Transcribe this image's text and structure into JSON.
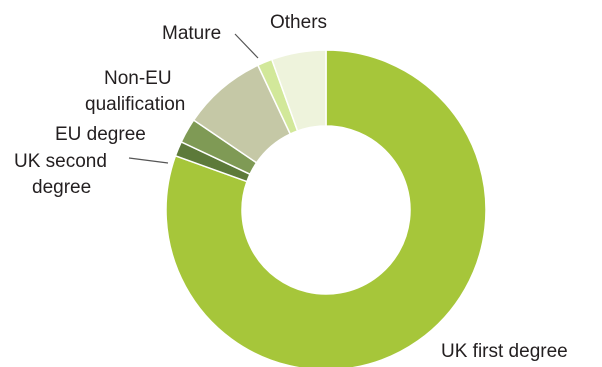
{
  "chart_data": {
    "type": "pie",
    "variant": "donut",
    "slices": [
      {
        "label": "UK first degree",
        "label_lines": [
          "UK first degree"
        ],
        "value": 80.5,
        "color": "#a6c63a"
      },
      {
        "label": "UK second degree",
        "label_lines": [
          "UK second",
          "degree"
        ],
        "value": 1.5,
        "color": "#5d7a3a"
      },
      {
        "label": "EU degree",
        "label_lines": [
          "EU degree"
        ],
        "value": 2.5,
        "color": "#7f9a55"
      },
      {
        "label": "Non-EU qualification",
        "label_lines": [
          "Non-EU",
          "qualification"
        ],
        "value": 8.5,
        "color": "#c5c8a6"
      },
      {
        "label": "Mature",
        "label_lines": [
          "Mature"
        ],
        "value": 1.5,
        "color": "#d2e89a"
      },
      {
        "label": "Others",
        "label_lines": [
          "Others"
        ],
        "value": 5.5,
        "color": "#eef3dc"
      }
    ]
  }
}
